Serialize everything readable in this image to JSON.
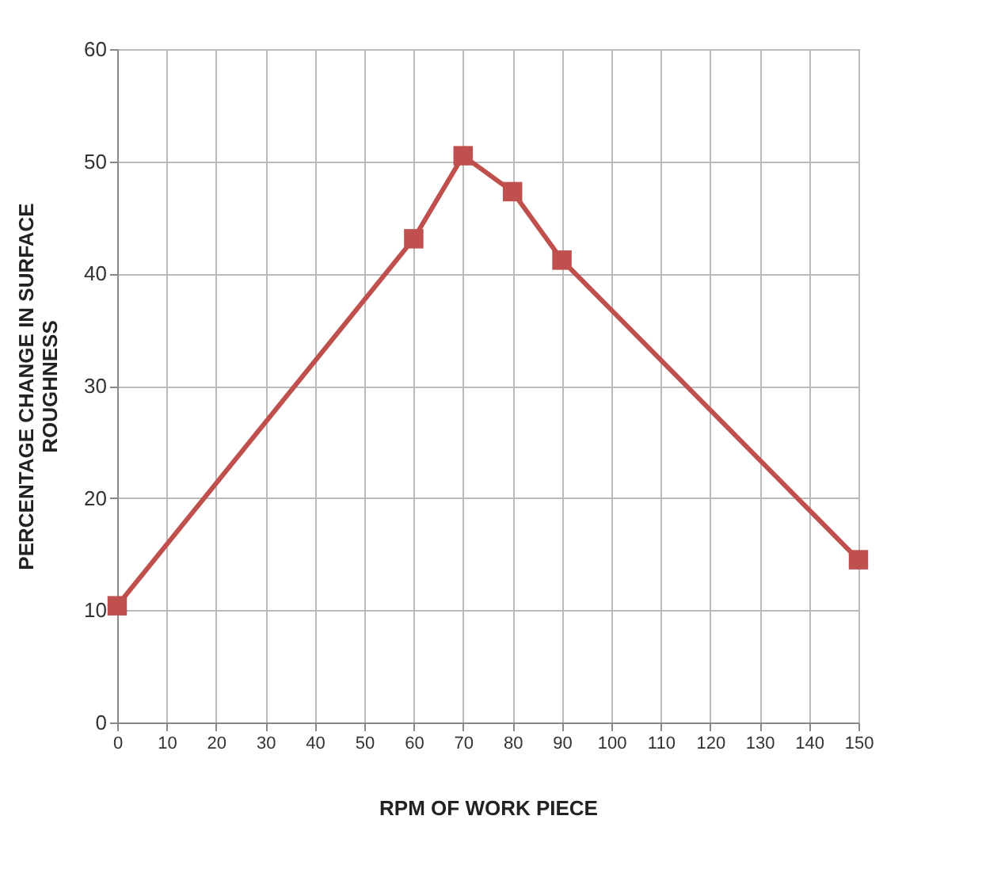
{
  "chart_data": {
    "type": "line",
    "xlabel": "RPM OF WORK PIECE",
    "ylabel": "PERCENTAGE CHANGE IN SURFACE ROUGHNESS",
    "x": [
      0,
      60,
      70,
      80,
      90,
      150
    ],
    "series": [
      {
        "color": "#c0504d",
        "values": [
          10.4,
          43.1,
          50.5,
          47.3,
          41.2,
          14.5
        ]
      }
    ],
    "xlim": [
      0,
      150
    ],
    "xticks": [
      0,
      10,
      20,
      30,
      40,
      50,
      60,
      70,
      80,
      90,
      100,
      110,
      120,
      130,
      140,
      150
    ],
    "ylim": [
      0,
      60
    ],
    "yticks": [
      0,
      10,
      20,
      30,
      40,
      50,
      60
    ],
    "grid": true,
    "marker": "square",
    "line_style": "solid"
  }
}
